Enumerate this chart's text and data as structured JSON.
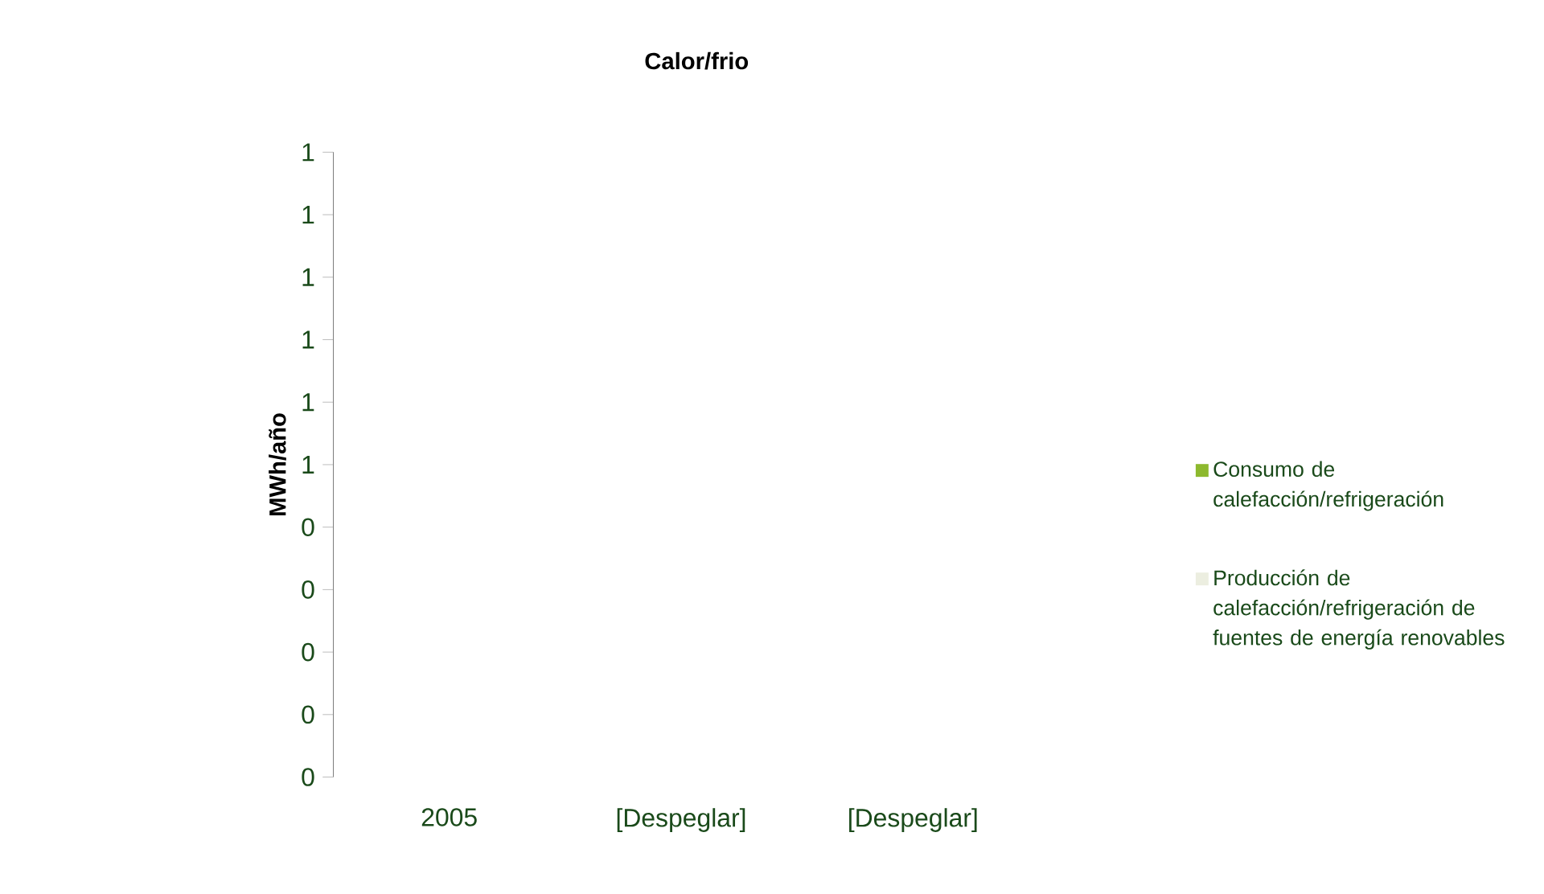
{
  "chart_data": {
    "type": "bar",
    "title": "Calor/frio",
    "ylabel": "MWh/año",
    "categories": [
      "2005",
      "[Despeglar]",
      "[Despeglar]"
    ],
    "series": [
      {
        "name": "Consumo de calefacción/refrigeración",
        "color": "#8db92e",
        "values": [
          null,
          null,
          null
        ]
      },
      {
        "name": "Producción de calefacción/refrigeración de fuentes de energía renovables",
        "color": "#eceee0",
        "values": [
          null,
          null,
          null
        ]
      }
    ],
    "ylim": [
      0,
      1
    ],
    "yticks": [
      0,
      {
        "value": 0.1,
        "label": "0"
      },
      {
        "value": 0.2,
        "label": "0"
      },
      {
        "value": 0.3,
        "label": "0"
      },
      {
        "value": 0.4,
        "label": "0"
      },
      {
        "value": 0.5,
        "label": "1"
      },
      {
        "value": 0.6,
        "label": "1"
      },
      {
        "value": 0.7,
        "label": "1"
      },
      {
        "value": 0.8,
        "label": "1"
      },
      {
        "value": 0.9,
        "label": "1"
      },
      1
    ],
    "legend": "right"
  }
}
